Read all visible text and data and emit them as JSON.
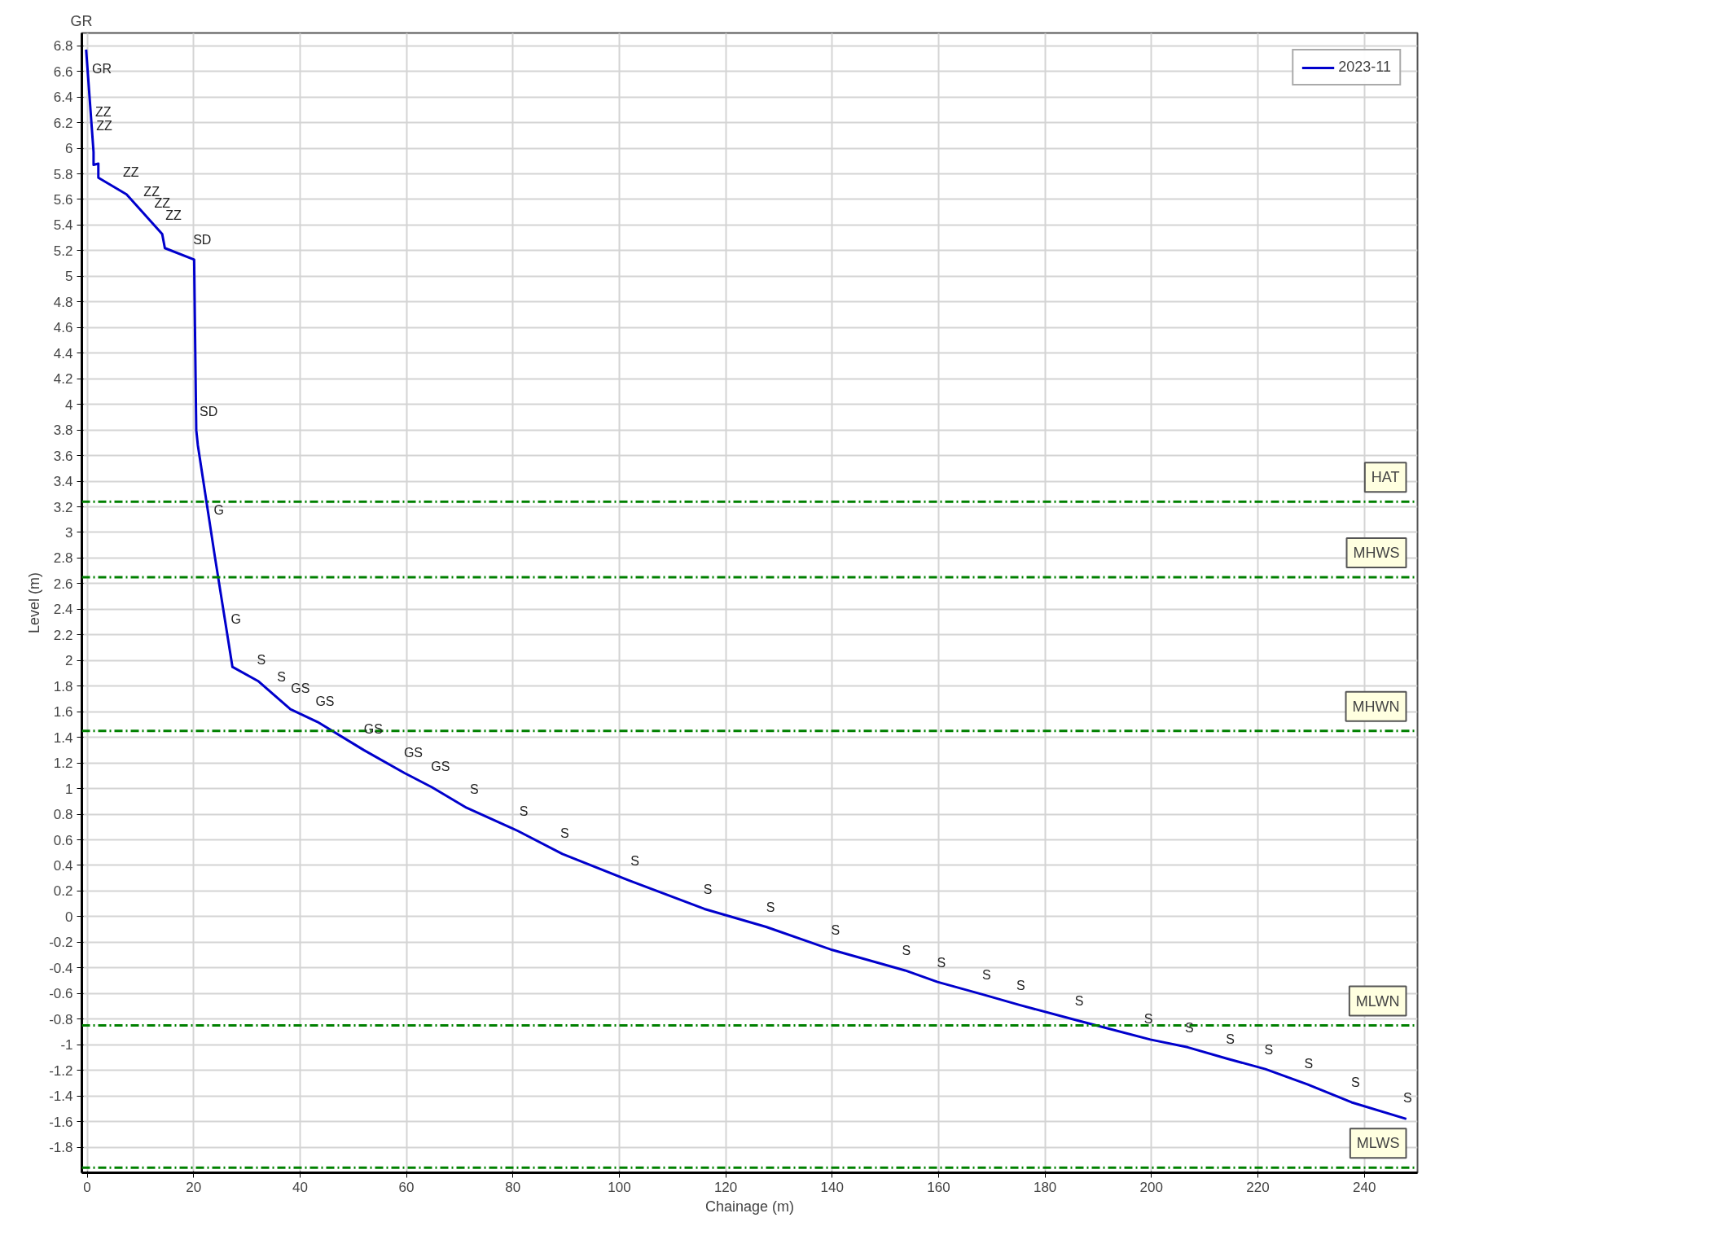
{
  "chart_data": {
    "type": "line",
    "xlabel": "Chainage (m)",
    "ylabel": "Level (m)",
    "xlim": [
      -1,
      250
    ],
    "ylim": [
      -2.0,
      6.9
    ],
    "xticks": [
      0,
      20,
      40,
      60,
      80,
      100,
      120,
      140,
      160,
      180,
      200,
      220,
      240
    ],
    "yticks": [
      -1.8,
      -1.6,
      -1.4,
      -1.2,
      -1,
      -0.8,
      -0.6,
      -0.4,
      -0.2,
      0,
      0.2,
      0.4,
      0.6,
      0.8,
      1,
      1.2,
      1.4,
      1.6,
      1.8,
      2,
      2.2,
      2.4,
      2.6,
      2.8,
      3,
      3.2,
      3.4,
      3.6,
      3.8,
      4,
      4.2,
      4.4,
      4.6,
      4.8,
      5,
      5.2,
      5.4,
      5.6,
      5.8,
      6,
      6.2,
      6.4,
      6.6,
      6.8
    ],
    "grid": true,
    "legend": "top right",
    "marker": "none",
    "line_style": "solid",
    "series": [
      {
        "name": "2023-11",
        "color": "#0000cc",
        "x": [
          -0.2,
          1.2,
          1.2,
          2.1,
          2.1,
          7.4,
          14.1,
          14.6,
          20.1,
          20.5,
          20.8,
          24,
          27.3,
          32.1,
          38.2,
          43.3,
          52,
          59.7,
          64.8,
          71.3,
          80.9,
          89.3,
          102,
          116,
          127.6,
          140,
          153.7,
          159.8,
          168.5,
          175.2,
          186,
          199.8,
          206.8,
          214.3,
          221.4,
          229.3,
          237.6,
          247.9
        ],
        "values": [
          6.77,
          5.97,
          5.87,
          5.88,
          5.77,
          5.64,
          5.33,
          5.22,
          5.13,
          3.8,
          3.68,
          2.81,
          1.95,
          1.84,
          1.62,
          1.52,
          1.3,
          1.12,
          1.01,
          0.85,
          0.67,
          0.49,
          0.28,
          0.06,
          -0.08,
          -0.26,
          -0.42,
          -0.51,
          -0.61,
          -0.69,
          -0.81,
          -0.96,
          -1.02,
          -1.11,
          -1.19,
          -1.31,
          -1.45,
          -1.58
        ]
      }
    ],
    "ref_lines": [
      {
        "axis": "y",
        "value": 3.24,
        "label": "HAT",
        "color": "#008000",
        "line_style": "dashdot"
      },
      {
        "axis": "y",
        "value": 2.65,
        "label": "MHWS",
        "color": "#008000",
        "line_style": "dashdot"
      },
      {
        "axis": "y",
        "value": 1.45,
        "label": "MHWN",
        "color": "#008000",
        "line_style": "dashdot"
      },
      {
        "axis": "y",
        "value": -0.85,
        "label": "MLWN",
        "color": "#008000",
        "line_style": "dashdot"
      },
      {
        "axis": "y",
        "value": -1.96,
        "label": "MLWS",
        "color": "#008000",
        "line_style": "dashdot"
      }
    ],
    "annotations": [
      "GR",
      {
        "text": "GR",
        "x": 0.3,
        "y": 6.48
      },
      {
        "text": "ZZ",
        "x": 0.9,
        "y": 6.14
      },
      {
        "text": "ZZ",
        "x": 1.1,
        "y": 6.03
      },
      {
        "text": "ZZ",
        "x": 6.1,
        "y": 5.67
      },
      {
        "text": "ZZ",
        "x": 10.0,
        "y": 5.52
      },
      {
        "text": "ZZ",
        "x": 12.0,
        "y": 5.43
      },
      {
        "text": "ZZ",
        "x": 14.1,
        "y": 5.33
      },
      {
        "text": "SD",
        "x": 19.3,
        "y": 5.14
      },
      {
        "text": "SD",
        "x": 20.5,
        "y": 3.8
      },
      {
        "text": "G",
        "x": 23.2,
        "y": 3.03
      },
      {
        "text": "G",
        "x": 26.4,
        "y": 2.18
      },
      {
        "text": "S",
        "x": 31.3,
        "y": 1.86
      },
      {
        "text": "S",
        "x": 35.1,
        "y": 1.73
      },
      {
        "text": "GS",
        "x": 37.7,
        "y": 1.64
      },
      {
        "text": "GS",
        "x": 42.3,
        "y": 1.54
      },
      {
        "text": "GS",
        "x": 51.4,
        "y": 1.32
      },
      {
        "text": "GS",
        "x": 58.9,
        "y": 1.14
      },
      {
        "text": "GS",
        "x": 64.0,
        "y": 1.03
      },
      {
        "text": "S",
        "x": 71.3,
        "y": 0.85
      },
      {
        "text": "S",
        "x": 80.6,
        "y": 0.68
      },
      {
        "text": "S",
        "x": 88.3,
        "y": 0.51
      },
      {
        "text": "S",
        "x": 101.5,
        "y": 0.29
      },
      {
        "text": "S",
        "x": 115.2,
        "y": 0.07
      },
      {
        "text": "S",
        "x": 127.0,
        "y": -0.07
      },
      {
        "text": "S",
        "x": 139.2,
        "y": -0.25
      },
      {
        "text": "S",
        "x": 152.5,
        "y": -0.41
      },
      {
        "text": "S",
        "x": 159.1,
        "y": -0.5
      },
      {
        "text": "S",
        "x": 167.6,
        "y": -0.6
      },
      {
        "text": "S",
        "x": 174.0,
        "y": -0.68
      },
      {
        "text": "S",
        "x": 185.0,
        "y": -0.8
      },
      {
        "text": "S",
        "x": 198.0,
        "y": -0.94
      },
      {
        "text": "S",
        "x": 205.7,
        "y": -1.01
      },
      {
        "text": "S",
        "x": 213.4,
        "y": -1.1
      },
      {
        "text": "S",
        "x": 220.6,
        "y": -1.18
      },
      {
        "text": "S",
        "x": 228.1,
        "y": -1.29
      },
      {
        "text": "S",
        "x": 236.9,
        "y": -1.44
      },
      {
        "text": "S",
        "x": 246.7,
        "y": -1.56
      }
    ]
  }
}
